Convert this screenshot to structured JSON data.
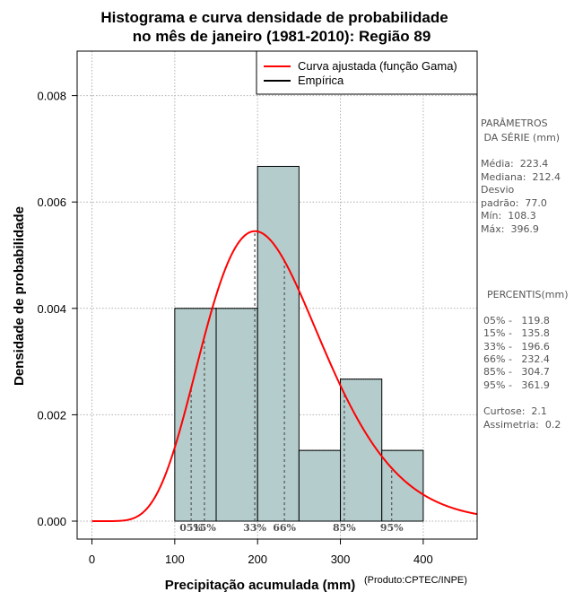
{
  "chart_data": {
    "type": "bar",
    "title_line1": "Histograma e curva densidade de probabilidade",
    "title_line2": "no mês de janeiro (1981-2010): Região 89",
    "xlabel": "Precipitação acumulada (mm)",
    "ylabel": "Densidade de probabilidade",
    "credit": "(Produto:CPTEC/INPE)",
    "xlim": [
      -15,
      465
    ],
    "ylim": [
      0,
      0.0088
    ],
    "x_ticks": [
      0,
      100,
      200,
      300,
      400
    ],
    "x_tick_labels": [
      "0",
      "100",
      "200",
      "300",
      "400"
    ],
    "y_ticks": [
      0,
      0.002,
      0.004,
      0.006,
      0.008
    ],
    "y_tick_labels": [
      "0.000",
      "0.002",
      "0.004",
      "0.006",
      "0.008"
    ],
    "grid": true,
    "bar_color": "#b4cccc",
    "curve_color": "#ff0000",
    "bins": [
      {
        "from": 100,
        "to": 150,
        "density": 0.004
      },
      {
        "from": 150,
        "to": 200,
        "density": 0.004
      },
      {
        "from": 200,
        "to": 250,
        "density": 0.00667
      },
      {
        "from": 250,
        "to": 300,
        "density": 0.00133
      },
      {
        "from": 300,
        "to": 350,
        "density": 0.00267
      },
      {
        "from": 350,
        "to": 400,
        "density": 0.00133
      }
    ],
    "gamma_fit": {
      "shape": 8.4,
      "scale": 26.6
    },
    "legend": {
      "position": "top-right",
      "entries": [
        {
          "label": "Curva ajustada (função Gama)",
          "color": "#ff0000"
        },
        {
          "label": "Empírica",
          "color": "#000000"
        }
      ]
    },
    "percentile_markers": [
      {
        "label": "05%",
        "x": 119.8
      },
      {
        "label": "15%",
        "x": 135.8
      },
      {
        "label": "33%",
        "x": 196.6
      },
      {
        "label": "66%",
        "x": 232.4
      },
      {
        "label": "85%",
        "x": 304.7
      },
      {
        "label": "95%",
        "x": 361.9
      }
    ]
  },
  "side_panel": {
    "params_title_1": "PARÂMETROS",
    "params_title_2": " DA SÉRIE (mm)",
    "media": "Média:  223.4",
    "mediana": "Mediana:  212.4",
    "desvio_1": "Desvio",
    "desvio_2": "padrão:  77.0",
    "min": "Mín:  108.3",
    "max": "Máx:  396.9",
    "pct_title": "PERCENTIS(mm)",
    "p05": "05% -   119.8",
    "p15": "15% -   135.8",
    "p33": "33% -   196.6",
    "p66": "66% -   232.4",
    "p85": "85% -   304.7",
    "p95": "95% -   361.9",
    "curtose": "Curtose:  2.1",
    "assimetria": "Assimetria:  0.2"
  }
}
